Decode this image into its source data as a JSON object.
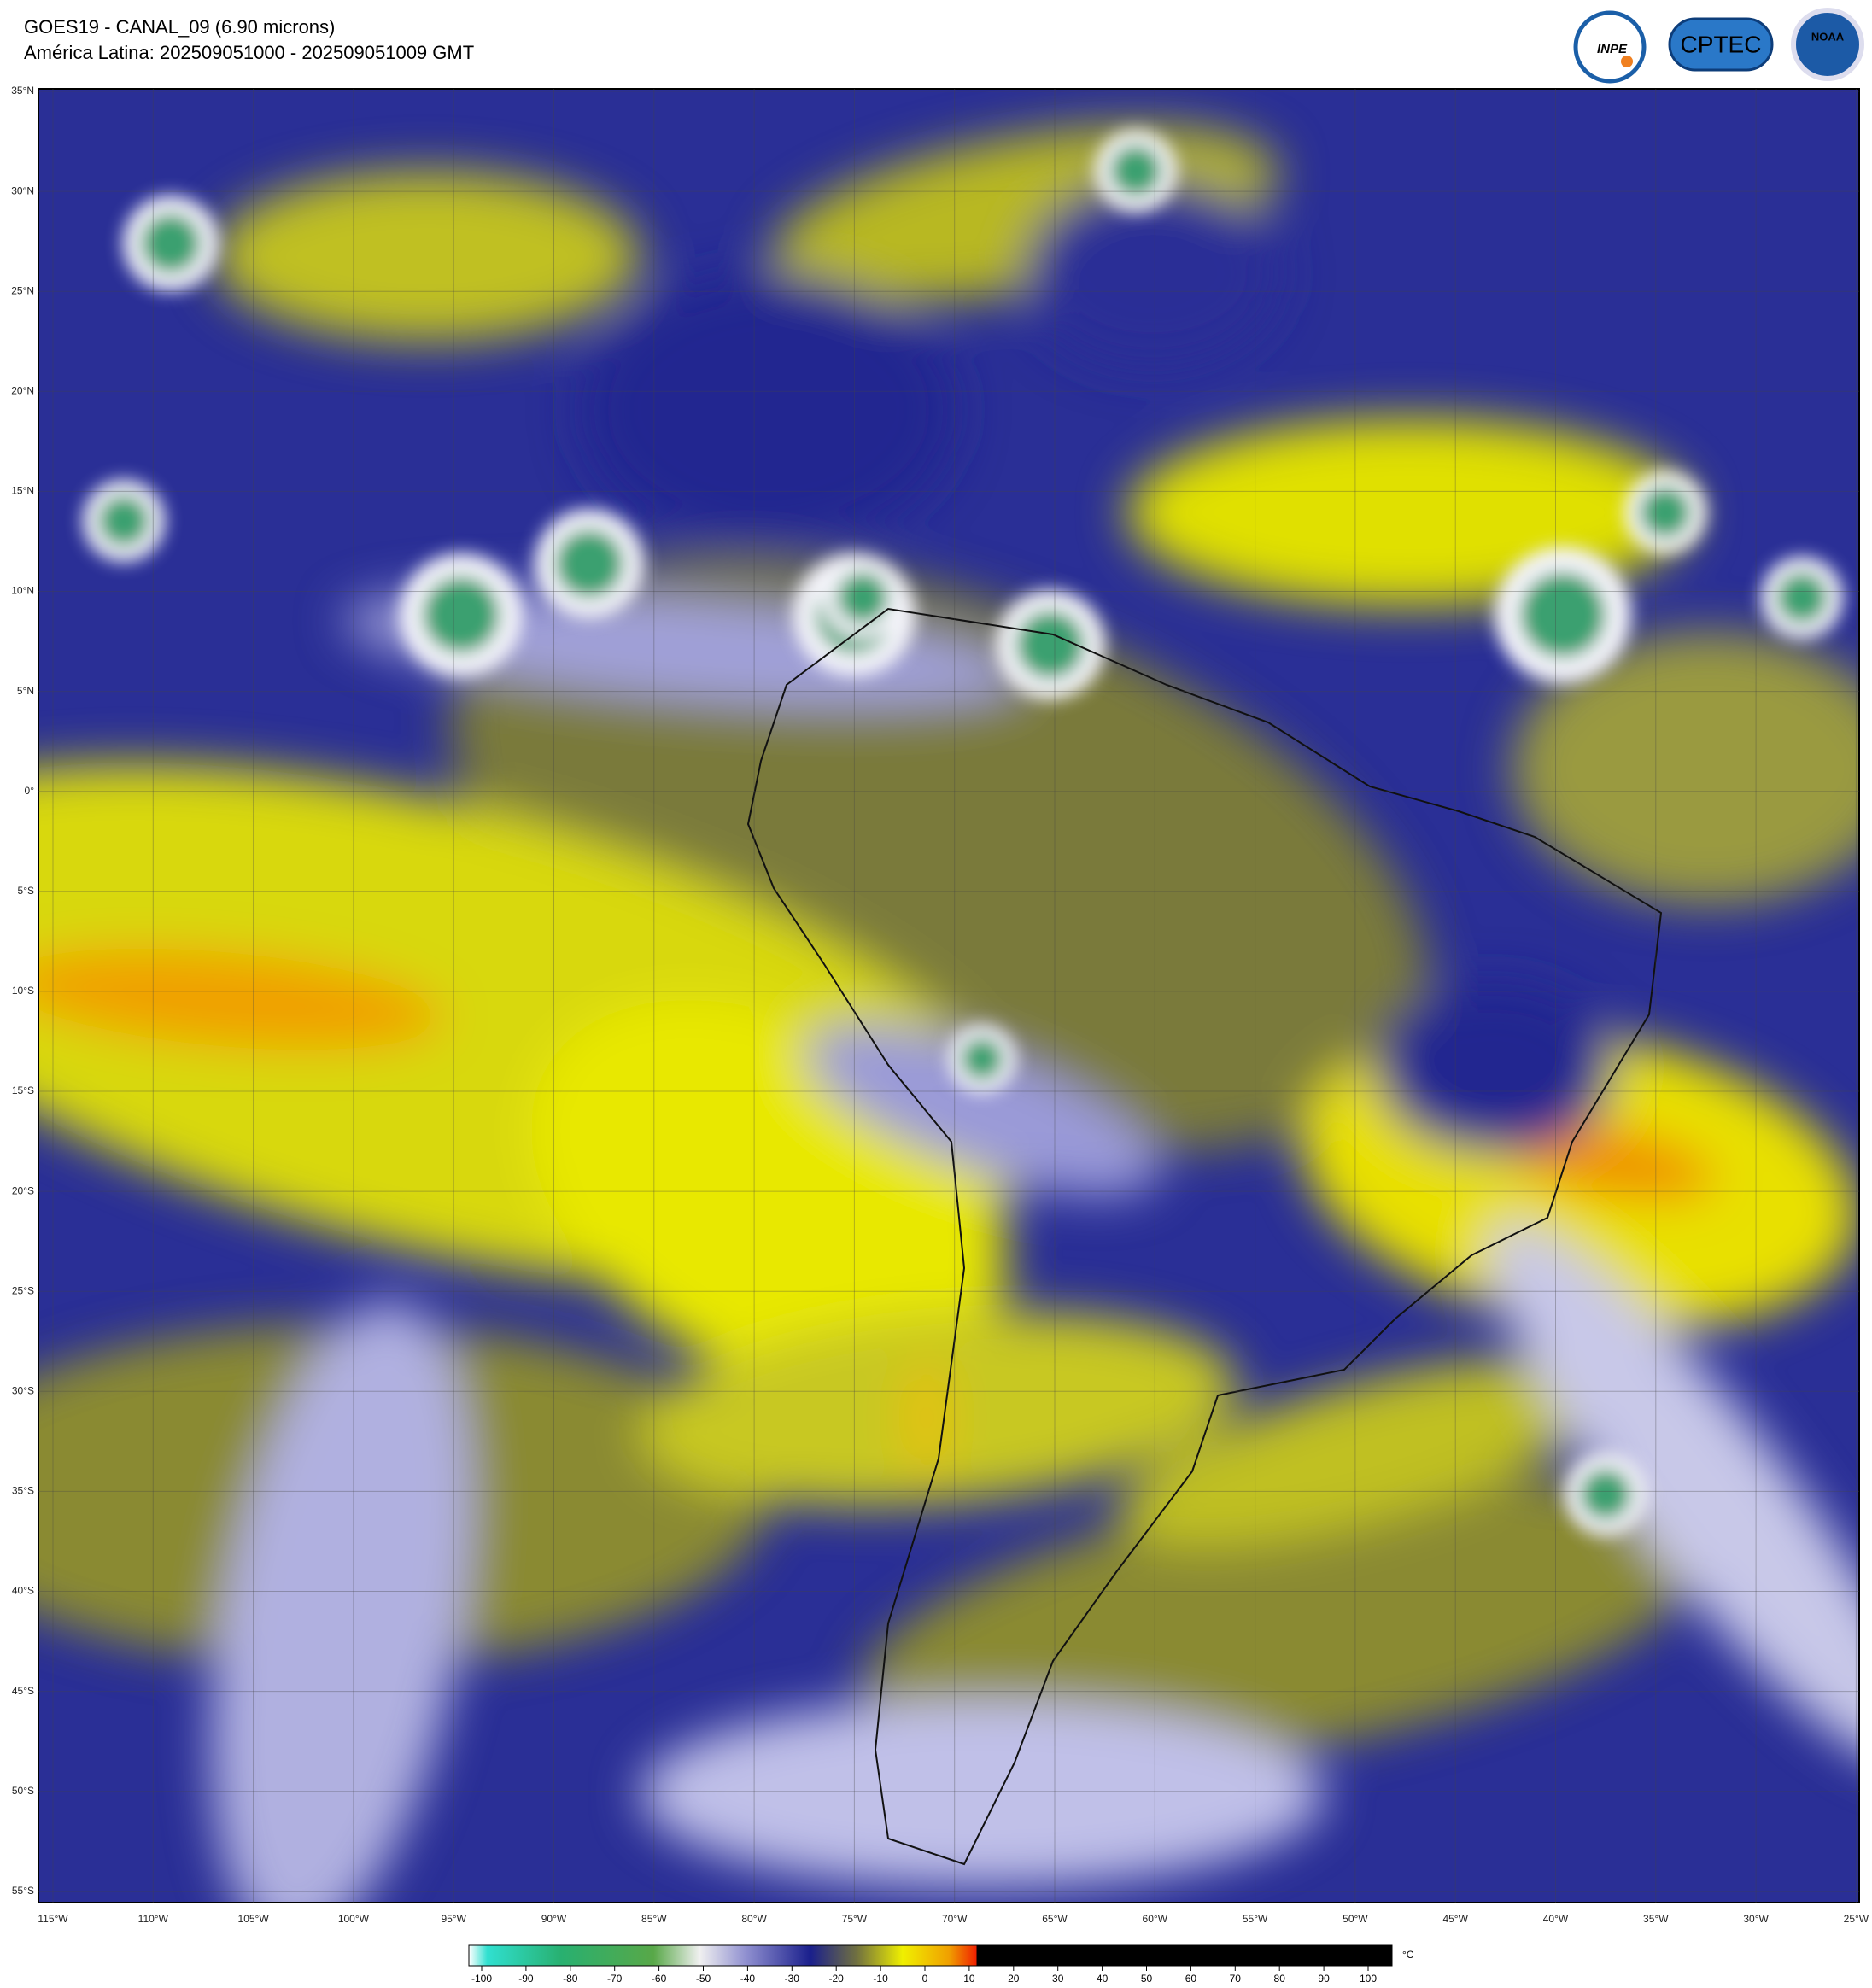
{
  "header": {
    "title": "GOES19 - CANAL_09 (6.90 microns)",
    "subtitle": "América Latina: 202509051000 - 202509051009 GMT"
  },
  "logos": [
    "INPE",
    "CPTEC",
    "NOAA"
  ],
  "map": {
    "lat_labels": [
      "35°N",
      "30°N",
      "25°N",
      "20°N",
      "15°N",
      "10°N",
      "5°N",
      "0°",
      "5°S",
      "10°S",
      "15°S",
      "20°S",
      "25°S",
      "30°S",
      "35°S",
      "40°S",
      "45°S",
      "50°S",
      "55°S"
    ],
    "lon_labels": [
      "115°W",
      "110°W",
      "105°W",
      "100°W",
      "95°W",
      "90°W",
      "85°W",
      "80°W",
      "75°W",
      "70°W",
      "65°W",
      "60°W",
      "55°W",
      "50°W",
      "45°W",
      "40°W",
      "35°W",
      "30°W",
      "25°W"
    ]
  },
  "colorbar": {
    "ticks": [
      -100,
      -90,
      -80,
      -70,
      -60,
      -50,
      -40,
      -30,
      -20,
      -10,
      0,
      10,
      20,
      30,
      40,
      50,
      60,
      70,
      80,
      90,
      100
    ],
    "unit": "°C"
  }
}
